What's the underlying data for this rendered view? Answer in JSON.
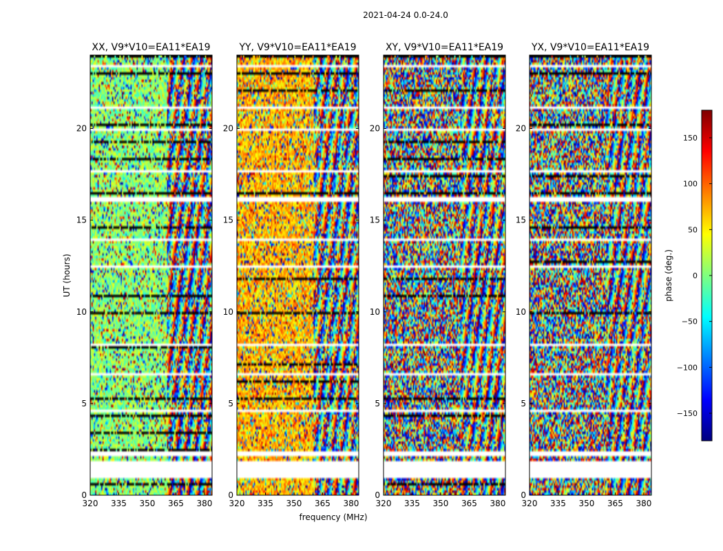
{
  "figure": {
    "suptitle": "2021-04-24 0.0-24.0",
    "xlabel": "frequency (MHz)",
    "ylabel": "UT (hours)"
  },
  "chart_data": {
    "type": "heatmap",
    "colormap": "jet",
    "x_range_mhz": [
      320,
      384
    ],
    "y_range_hours": [
      0,
      24
    ],
    "x_ticks": [
      320,
      335,
      350,
      365,
      380
    ],
    "y_ticks": [
      0,
      5,
      10,
      15,
      20
    ],
    "panels": [
      {
        "title": "XX, V9*V10=EA11*EA19",
        "base_phase": 5
      },
      {
        "title": "YY, V9*V10=EA11*EA19",
        "base_phase": 70
      },
      {
        "title": "XY, V9*V10=EA11*EA19",
        "base_phase": null
      },
      {
        "title": "YX, V9*V10=EA11*EA19",
        "base_phase": null
      }
    ],
    "colorbar": {
      "label": "phase (deg.)",
      "range": [
        -180,
        180
      ],
      "ticks": [
        150,
        100,
        50,
        0,
        -50,
        -100,
        -150
      ],
      "tick_labels": [
        "150",
        "100",
        "50",
        "0",
        "−50",
        "−100",
        "−150"
      ]
    },
    "flagged_gaps_hours": [
      [
        0.95,
        1.9
      ],
      [
        2.15,
        2.35
      ],
      [
        4.55,
        4.7
      ],
      [
        6.55,
        6.7
      ],
      [
        8.15,
        8.3
      ],
      [
        12.35,
        12.55
      ],
      [
        13.85,
        14.0
      ],
      [
        16.05,
        16.25
      ],
      [
        17.55,
        17.7
      ],
      [
        19.85,
        20.0
      ],
      [
        21.05,
        21.2
      ],
      [
        23.35,
        23.5
      ]
    ]
  }
}
